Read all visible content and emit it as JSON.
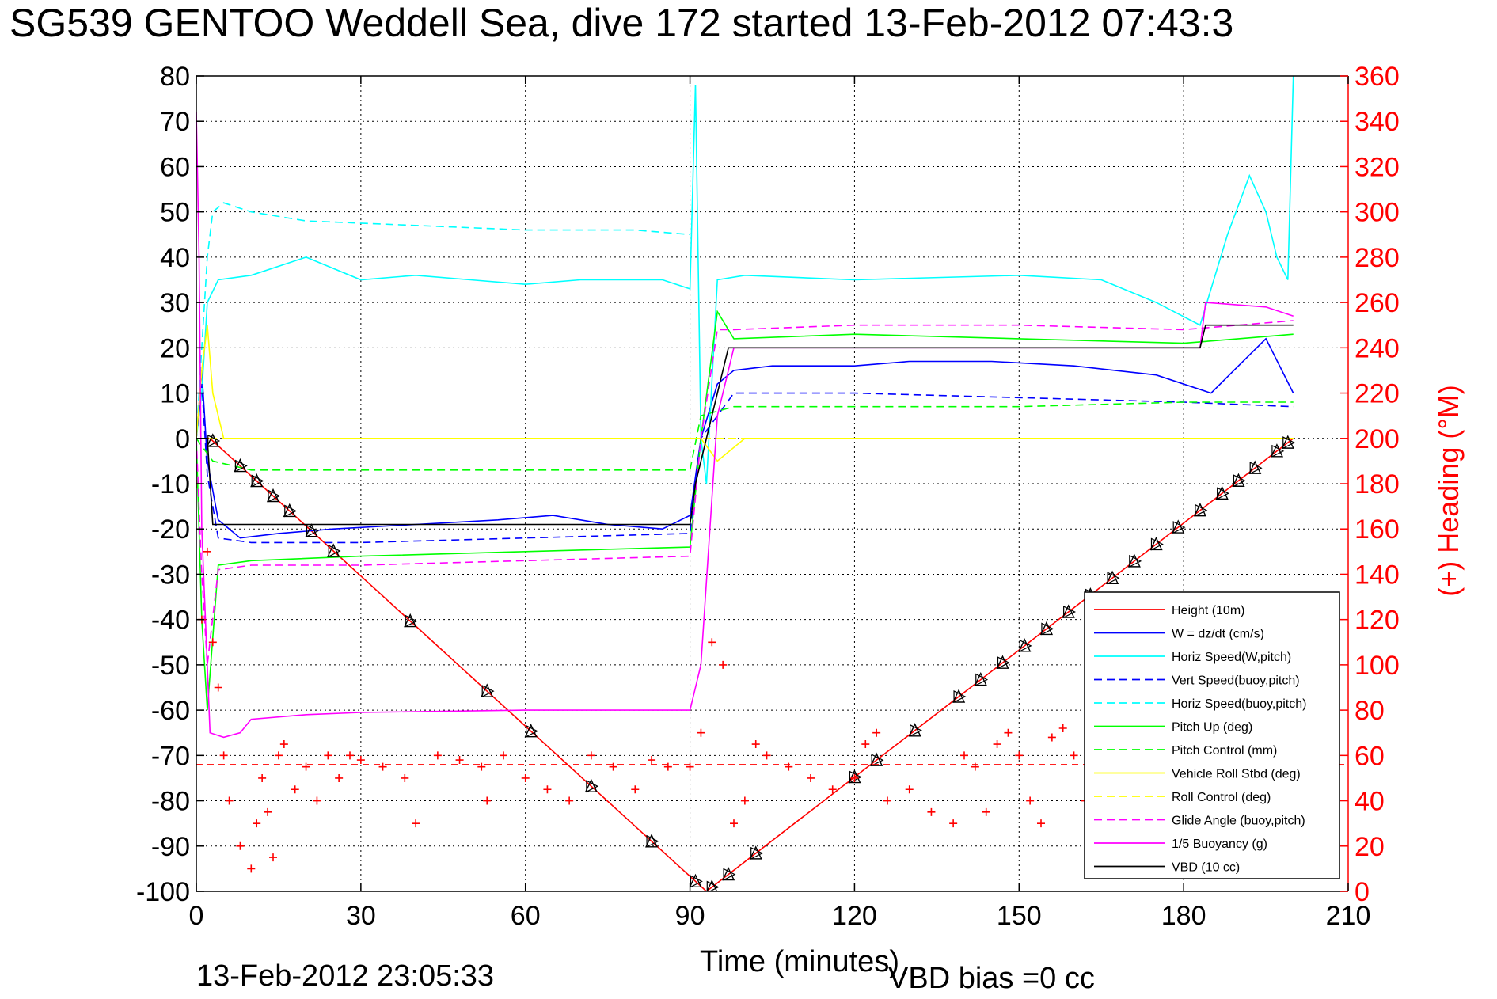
{
  "chart_data": {
    "type": "line",
    "title": "SG539 GENTOO Weddell Sea, dive 172 started 13-Feb-2012 07:43:3",
    "xlabel": "Time (minutes)",
    "ylabel": "",
    "y2label": "(+) Heading (°M)",
    "xlim": [
      0,
      210
    ],
    "ylim": [
      -100,
      80
    ],
    "y2lim": [
      0,
      360
    ],
    "grid": true,
    "legend_position": "bottom-right",
    "xticks": [
      "0",
      "30",
      "60",
      "90",
      "120",
      "150",
      "180",
      "210"
    ],
    "yticks": [
      "80",
      "70",
      "60",
      "50",
      "40",
      "30",
      "20",
      "10",
      "0",
      "-10",
      "-20",
      "-30",
      "-40",
      "-50",
      "-60",
      "-70",
      "-80",
      "-90",
      "-100"
    ],
    "y2ticks": [
      "360",
      "340",
      "320",
      "300",
      "280",
      "260",
      "240",
      "220",
      "200",
      "180",
      "160",
      "140",
      "120",
      "100",
      "80",
      "60",
      "40",
      "20",
      "0"
    ],
    "footer_date": "13-Feb-2012 23:05:33",
    "footer_vbd": "VBD bias =0 cc",
    "colors": {
      "height": "#ff0000",
      "w": "#0000ff",
      "horiz_w": "#00ffff",
      "vert_buoy": "#0000ff",
      "horiz_buoy": "#00ffff",
      "pitch": "#00ff00",
      "pitch_ctrl": "#00ff00",
      "roll": "#ffff00",
      "roll_ctrl": "#ffff00",
      "glide": "#ff00ff",
      "buoyancy": "#ff00ff",
      "vbd": "#000000",
      "heading": "#ff0000"
    },
    "series": [
      {
        "name": "Height (10m)",
        "style": "solid",
        "color": "#ff0000",
        "x": [
          0,
          2.5,
          93,
          200
        ],
        "y": [
          0,
          0,
          -100,
          0
        ]
      },
      {
        "name": "W = dz/dt (cm/s)",
        "style": "solid",
        "color": "#0000ff",
        "x": [
          0,
          1,
          2,
          4,
          8,
          15,
          25,
          40,
          55,
          65,
          75,
          85,
          90,
          92,
          95,
          98,
          105,
          120,
          130,
          145,
          160,
          175,
          185,
          190,
          195,
          200
        ],
        "y": [
          0,
          15,
          -5,
          -18,
          -22,
          -21,
          -20,
          -19,
          -18,
          -17,
          -19,
          -20,
          -17,
          0,
          12,
          15,
          16,
          16,
          17,
          17,
          16,
          14,
          10,
          16,
          22,
          10
        ]
      },
      {
        "name": "Horiz Speed(W,pitch)",
        "style": "solid",
        "color": "#00ffff",
        "x": [
          0,
          1,
          2,
          4,
          10,
          20,
          30,
          40,
          50,
          60,
          70,
          85,
          90,
          91,
          92,
          93,
          95,
          100,
          120,
          150,
          165,
          175,
          183,
          188,
          192,
          195,
          197,
          199,
          200
        ],
        "y": [
          0,
          10,
          30,
          35,
          36,
          40,
          35,
          36,
          35,
          34,
          35,
          35,
          33,
          78,
          0,
          -10,
          35,
          36,
          35,
          36,
          35,
          30,
          25,
          45,
          58,
          50,
          40,
          35,
          80
        ]
      },
      {
        "name": "Vert Speed(buoy,pitch)",
        "style": "dash",
        "color": "#0000ff",
        "x": [
          0,
          1,
          2,
          4,
          10,
          30,
          60,
          90,
          92,
          95,
          98,
          120,
          150,
          180,
          200
        ],
        "y": [
          0,
          12,
          -8,
          -22,
          -23,
          -23,
          -22,
          -21,
          0,
          5,
          10,
          10,
          9,
          8,
          7
        ]
      },
      {
        "name": "Horiz Speed(buoy,pitch)",
        "style": "dash",
        "color": "#00ffff",
        "x": [
          0,
          1,
          2,
          3,
          5,
          10,
          20,
          40,
          60,
          80,
          90
        ],
        "y": [
          0,
          20,
          40,
          50,
          52,
          50,
          48,
          47,
          46,
          46,
          45
        ]
      },
      {
        "name": "Pitch Up (deg)",
        "style": "solid",
        "color": "#00ff00",
        "x": [
          0,
          1,
          2,
          4,
          10,
          30,
          60,
          90,
          92,
          95,
          98,
          120,
          150,
          180,
          190,
          200
        ],
        "y": [
          0,
          -40,
          -60,
          -28,
          -27,
          -26,
          -25,
          -24,
          0,
          28,
          22,
          23,
          22,
          21,
          22,
          23
        ]
      },
      {
        "name": "Pitch Control (mm)",
        "style": "dash",
        "color": "#00ff00",
        "x": [
          0,
          3,
          10,
          30,
          60,
          90,
          92,
          98,
          120,
          150,
          180,
          200
        ],
        "y": [
          0,
          -5,
          -7,
          -7,
          -7,
          -7,
          5,
          7,
          7,
          7,
          8,
          8
        ]
      },
      {
        "name": "Vehicle Roll Stbd (deg)",
        "style": "solid",
        "color": "#ffff00",
        "x": [
          0,
          1,
          2,
          3,
          5,
          10,
          30,
          60,
          90,
          92,
          95,
          100,
          130,
          160,
          190,
          200
        ],
        "y": [
          0,
          15,
          25,
          10,
          0,
          0,
          0,
          0,
          0,
          0,
          -5,
          0,
          0,
          0,
          0,
          0
        ]
      },
      {
        "name": "Roll Control (deg)",
        "style": "dash",
        "color": "#ffff00",
        "x": [
          0,
          3,
          10,
          90,
          95,
          100,
          200
        ],
        "y": [
          0,
          0,
          0,
          0,
          0,
          0,
          0
        ]
      },
      {
        "name": "Glide Angle (buoy,pitch)",
        "style": "dash",
        "color": "#ff00ff",
        "x": [
          0,
          1,
          2,
          4,
          10,
          30,
          60,
          90,
          92,
          95,
          98,
          120,
          150,
          180,
          200
        ],
        "y": [
          0,
          -30,
          -50,
          -29,
          -28,
          -28,
          -27,
          -26,
          0,
          24,
          24,
          25,
          25,
          24,
          26
        ]
      },
      {
        "name": "1/5 Buoyancy (g)",
        "style": "solid",
        "color": "#ff00ff",
        "x": [
          0,
          0.5,
          1,
          2.5,
          5,
          8,
          10,
          20,
          30,
          60,
          90,
          92,
          95,
          98,
          120,
          150,
          183,
          184,
          195,
          200
        ],
        "y": [
          72,
          40,
          -20,
          -65,
          -66,
          -65,
          -62,
          -61,
          -60.5,
          -60,
          -60,
          -50,
          5,
          20,
          20,
          20,
          20,
          30,
          29,
          27
        ]
      },
      {
        "name": "VBD (10 cc)",
        "style": "solid",
        "color": "#000000",
        "x": [
          0,
          2,
          3,
          90,
          91,
          97,
          98,
          183,
          184,
          200
        ],
        "y": [
          0,
          0,
          -19,
          -19,
          -10,
          20,
          20,
          20,
          25,
          25
        ]
      }
    ],
    "heading": {
      "name": "Heading",
      "marker": "+",
      "color": "#ff0000",
      "axis": "right",
      "reference_line": 56,
      "x": [
        0,
        1,
        2,
        3,
        4,
        5,
        6,
        8,
        10,
        11,
        12,
        13,
        14,
        15,
        16,
        18,
        20,
        22,
        24,
        26,
        28,
        30,
        34,
        38,
        40,
        44,
        48,
        52,
        53,
        56,
        60,
        64,
        68,
        72,
        76,
        80,
        83,
        86,
        90,
        92,
        94,
        96,
        98,
        100,
        102,
        104,
        108,
        112,
        116,
        120,
        122,
        124,
        126,
        130,
        134,
        138,
        140,
        142,
        144,
        146,
        148,
        150,
        152,
        154,
        156,
        158,
        160,
        162,
        164,
        166,
        168,
        170
      ],
      "y": [
        180,
        120,
        150,
        110,
        90,
        60,
        40,
        20,
        10,
        30,
        50,
        35,
        15,
        60,
        65,
        45,
        55,
        40,
        60,
        50,
        60,
        58,
        55,
        50,
        30,
        60,
        58,
        55,
        40,
        60,
        50,
        45,
        40,
        60,
        55,
        45,
        58,
        55,
        55,
        70,
        110,
        100,
        30,
        40,
        65,
        60,
        55,
        50,
        45,
        50,
        65,
        70,
        40,
        45,
        35,
        30,
        60,
        55,
        35,
        65,
        70,
        60,
        40,
        30,
        68,
        72,
        60,
        40,
        35,
        65,
        50,
        45
      ]
    }
  },
  "legend": {
    "items": [
      {
        "label": "Height (10m)",
        "color": "#ff0000",
        "style": "solid"
      },
      {
        "label": "W = dz/dt (cm/s)",
        "color": "#0000ff",
        "style": "solid"
      },
      {
        "label": "Horiz Speed(W,pitch)",
        "color": "#00ffff",
        "style": "solid"
      },
      {
        "label": "Vert Speed(buoy,pitch)",
        "color": "#0000ff",
        "style": "dash"
      },
      {
        "label": "Horiz Speed(buoy,pitch)",
        "color": "#00ffff",
        "style": "dash"
      },
      {
        "label": "Pitch Up (deg)",
        "color": "#00ff00",
        "style": "solid"
      },
      {
        "label": "Pitch Control (mm)",
        "color": "#00ff00",
        "style": "dash"
      },
      {
        "label": "Vehicle Roll Stbd (deg)",
        "color": "#ffff00",
        "style": "solid"
      },
      {
        "label": "Roll Control (deg)",
        "color": "#ffff00",
        "style": "dash"
      },
      {
        "label": "Glide Angle (buoy,pitch)",
        "color": "#ff00ff",
        "style": "dash"
      },
      {
        "label": "1/5 Buoyancy (g)",
        "color": "#ff00ff",
        "style": "solid"
      },
      {
        "label": "VBD (10 cc)",
        "color": "#000000",
        "style": "solid"
      }
    ]
  }
}
